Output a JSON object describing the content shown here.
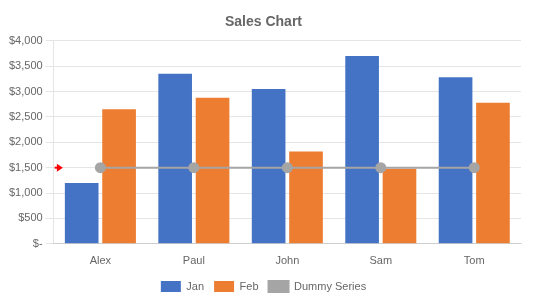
{
  "chart_data": {
    "type": "bar",
    "title": "Sales Chart",
    "categories": [
      "Alex",
      "Paul",
      "John",
      "Sam",
      "Tom"
    ],
    "series": [
      {
        "name": "Jan",
        "type": "bar",
        "color": "#4472C4",
        "values": [
          1200,
          3350,
          3050,
          3700,
          3280
        ]
      },
      {
        "name": "Feb",
        "type": "bar",
        "color": "#ED7D31",
        "values": [
          2650,
          2880,
          1820,
          1480,
          2780
        ]
      },
      {
        "name": "Dummy Series",
        "type": "line",
        "color": "#A5A5A5",
        "marker": "circle",
        "line_style": "solid",
        "values": [
          1500,
          1500,
          1500,
          1500,
          1500
        ]
      }
    ],
    "ylim": [
      0,
      4000
    ],
    "yticks": [
      {
        "value": 0,
        "label": "$-"
      },
      {
        "value": 500,
        "label": "$500"
      },
      {
        "value": 1000,
        "label": "$1,000"
      },
      {
        "value": 1500,
        "label": "$1,500"
      },
      {
        "value": 2000,
        "label": "$2,000"
      },
      {
        "value": 2500,
        "label": "$2,500"
      },
      {
        "value": 3000,
        "label": "$3,000"
      },
      {
        "value": 3500,
        "label": "$3,500"
      },
      {
        "value": 4000,
        "label": "$4,000"
      }
    ],
    "grid": true,
    "legend": "bottom"
  }
}
